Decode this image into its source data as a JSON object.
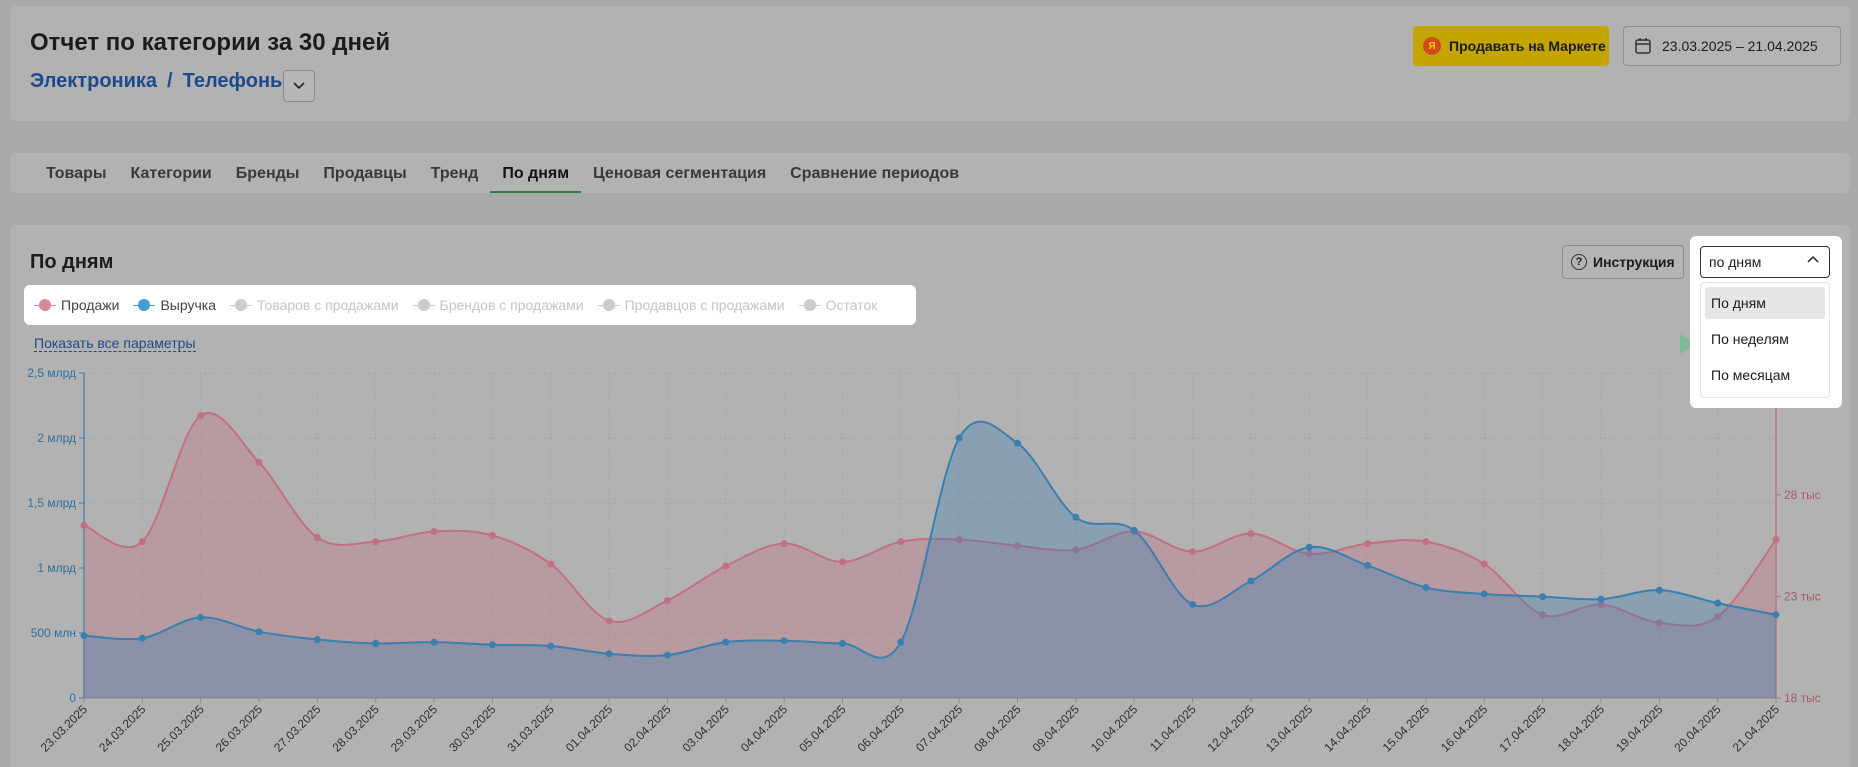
{
  "header": {
    "title": "Отчет по категории за 30 дней",
    "breadcrumb": [
      "Электроника",
      "Телефоны"
    ],
    "breadcrumb_sep": "/",
    "market_button": "Продавать на Маркете",
    "date_range": "23.03.2025 – 21.04.2025"
  },
  "tabs": [
    {
      "label": "Товары"
    },
    {
      "label": "Категории"
    },
    {
      "label": "Бренды"
    },
    {
      "label": "Продавцы"
    },
    {
      "label": "Тренд"
    },
    {
      "label": "По дням",
      "active": true
    },
    {
      "label": "Ценовая сегментация"
    },
    {
      "label": "Сравнение периодов"
    }
  ],
  "section": {
    "title": "По дням",
    "instruction_button": "Инструкция",
    "show_all_params": "Показать все параметры"
  },
  "legend": [
    {
      "label": "Продажи",
      "active": true,
      "color": "#d9899a"
    },
    {
      "label": "Выручка",
      "active": true,
      "color": "#3f9fd4"
    },
    {
      "label": "Товаров с продажами",
      "active": false
    },
    {
      "label": "Брендов с продажами",
      "active": false
    },
    {
      "label": "Продавцов с продажами",
      "active": false
    },
    {
      "label": "Остаток",
      "active": false
    }
  ],
  "granularity": {
    "selected": "по дням",
    "options": [
      "По дням",
      "По неделям",
      "По месяцам"
    ]
  },
  "chart_data": {
    "type": "area",
    "x": [
      "23.03.2025",
      "24.03.2025",
      "25.03.2025",
      "26.03.2025",
      "27.03.2025",
      "28.03.2025",
      "29.03.2025",
      "30.03.2025",
      "31.03.2025",
      "01.04.2025",
      "02.04.2025",
      "03.04.2025",
      "04.04.2025",
      "05.04.2025",
      "06.04.2025",
      "07.04.2025",
      "08.04.2025",
      "09.04.2025",
      "10.04.2025",
      "11.04.2025",
      "12.04.2025",
      "13.04.2025",
      "14.04.2025",
      "15.04.2025",
      "16.04.2025",
      "17.04.2025",
      "18.04.2025",
      "19.04.2025",
      "20.04.2025",
      "21.04.2025"
    ],
    "left_axis_ticks": [
      "0",
      "500 млн",
      "1 млрд",
      "1,5 млрд",
      "2 млрд",
      "2,5 млрд"
    ],
    "right_axis_ticks": [
      "18 тыс",
      "23 тыс",
      "28 тыс"
    ],
    "series": [
      {
        "name": "Продажи",
        "axis": "right",
        "color": "#c07080",
        "values": [
          26500,
          25700,
          31900,
          29600,
          25900,
          25700,
          26200,
          26000,
          24600,
          21800,
          22800,
          24500,
          25600,
          24700,
          25700,
          25800,
          25500,
          25300,
          26200,
          25200,
          26100,
          25100,
          25600,
          25700,
          24600,
          22100,
          22600,
          21700,
          22000,
          25800
        ]
      },
      {
        "name": "Выручка",
        "axis": "left",
        "color": "#3a7fae",
        "values": [
          480,
          460,
          620,
          510,
          450,
          420,
          430,
          410,
          400,
          340,
          330,
          430,
          440,
          420,
          430,
          2000,
          1960,
          1390,
          1290,
          720,
          900,
          1160,
          1020,
          850,
          800,
          780,
          760,
          830,
          730,
          640
        ]
      }
    ],
    "ylim_left": [
      0,
      2500
    ],
    "ylim_right": [
      18000,
      34000
    ]
  }
}
